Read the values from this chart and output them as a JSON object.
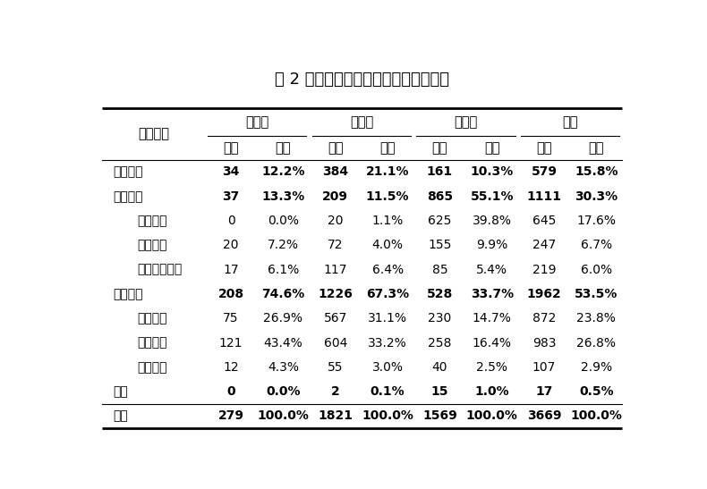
{
  "title": "表 2 签三方就业毕业生的单位性质分布",
  "col_groups": [
    "本科生",
    "硕士生",
    "博士生",
    "总计"
  ],
  "col_sub": [
    "人数",
    "比例"
  ],
  "row_header": "单位性质",
  "rows": [
    {
      "label": "党政机关",
      "bold": true,
      "indent": false,
      "data": [
        "34",
        "12.2%",
        "384",
        "21.1%",
        "161",
        "10.3%",
        "579",
        "15.8%"
      ]
    },
    {
      "label": "事业单位",
      "bold": true,
      "indent": false,
      "data": [
        "37",
        "13.3%",
        "209",
        "11.5%",
        "865",
        "55.1%",
        "1111",
        "30.3%"
      ]
    },
    {
      "label": "高等院校",
      "bold": false,
      "indent": true,
      "data": [
        "0",
        "0.0%",
        "20",
        "1.1%",
        "625",
        "39.8%",
        "645",
        "17.6%"
      ]
    },
    {
      "label": "科研单位",
      "bold": false,
      "indent": true,
      "data": [
        "20",
        "7.2%",
        "72",
        "4.0%",
        "155",
        "9.9%",
        "247",
        "6.7%"
      ]
    },
    {
      "label": "其他事业单位",
      "bold": false,
      "indent": true,
      "data": [
        "17",
        "6.1%",
        "117",
        "6.4%",
        "85",
        "5.4%",
        "219",
        "6.0%"
      ]
    },
    {
      "label": "企业单位",
      "bold": true,
      "indent": false,
      "data": [
        "208",
        "74.6%",
        "1226",
        "67.3%",
        "528",
        "33.7%",
        "1962",
        "53.5%"
      ]
    },
    {
      "label": "国有企业",
      "bold": false,
      "indent": true,
      "data": [
        "75",
        "26.9%",
        "567",
        "31.1%",
        "230",
        "14.7%",
        "872",
        "23.8%"
      ]
    },
    {
      "label": "民营企业",
      "bold": false,
      "indent": true,
      "data": [
        "121",
        "43.4%",
        "604",
        "33.2%",
        "258",
        "16.4%",
        "983",
        "26.8%"
      ]
    },
    {
      "label": "外资企业",
      "bold": false,
      "indent": true,
      "data": [
        "12",
        "4.3%",
        "55",
        "3.0%",
        "40",
        "2.5%",
        "107",
        "2.9%"
      ]
    },
    {
      "label": "部队",
      "bold": true,
      "indent": false,
      "data": [
        "0",
        "0.0%",
        "2",
        "0.1%",
        "15",
        "1.0%",
        "17",
        "0.5%"
      ]
    },
    {
      "label": "合计",
      "bold": true,
      "indent": false,
      "data": [
        "279",
        "100.0%",
        "1821",
        "100.0%",
        "1569",
        "100.0%",
        "3669",
        "100.0%"
      ]
    }
  ],
  "bg_color": "#ffffff",
  "text_color": "#000000",
  "line_color": "#000000",
  "lw_thick": 2.0,
  "lw_thin": 0.8,
  "fig_width": 7.9,
  "fig_height": 5.47,
  "dpi": 100
}
